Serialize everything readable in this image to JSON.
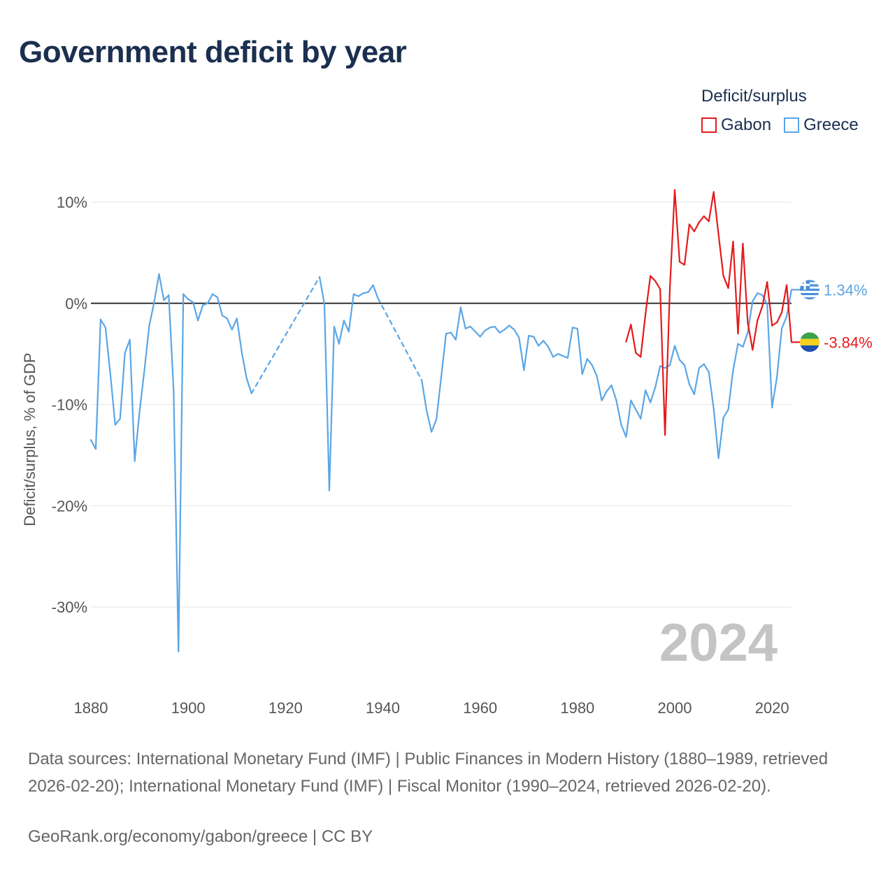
{
  "title": "Government deficit by year",
  "legend": {
    "title": "Deficit/surplus",
    "items": [
      {
        "name": "Gabon",
        "color": "#e41a1c"
      },
      {
        "name": "Greece",
        "color": "#5aa6e6"
      }
    ]
  },
  "source": "Data sources: International Monetary Fund (IMF) | Public Finances in Modern History (1880–1989, retrieved 2026-02-20); International Monetary Fund (IMF) | Fiscal Monitor (1990–2024, retrieved 2026-02-20).",
  "credit": "GeoRank.org/economy/gabon/greece | CC BY",
  "chart_data": {
    "type": "line",
    "title": "Government deficit by year",
    "xlabel": "",
    "ylabel": "Deficit/surplus, % of GDP",
    "xlim": [
      1880,
      2024
    ],
    "ylim": [
      -35.5,
      11.5
    ],
    "x_ticks": [
      {
        "value": 1880,
        "label": "1880"
      },
      {
        "value": 1900,
        "label": "1900"
      },
      {
        "value": 1920,
        "label": "1920"
      },
      {
        "value": 1940,
        "label": "1940"
      },
      {
        "value": 1960,
        "label": "1960"
      },
      {
        "value": 1980,
        "label": "1980"
      },
      {
        "value": 2000,
        "label": "2000"
      },
      {
        "value": 2020,
        "label": "2020"
      }
    ],
    "y_ticks": [
      {
        "value": 10,
        "label": "10%"
      },
      {
        "value": 0,
        "label": "0%"
      },
      {
        "value": -10,
        "label": "-10%"
      },
      {
        "value": -20,
        "label": "-20%"
      },
      {
        "value": -30,
        "label": "-30%"
      }
    ],
    "current_year": "2024",
    "series": [
      {
        "name": "Gabon",
        "color": "#e41a1c",
        "end_label": "-3.84%",
        "end_value": -3.84,
        "flag": "gabon-flag",
        "points": [
          [
            1990,
            -3.8
          ],
          [
            1991,
            -2.1
          ],
          [
            1992,
            -4.9
          ],
          [
            1993,
            -5.3
          ],
          [
            1994,
            -1.0
          ],
          [
            1995,
            2.7
          ],
          [
            1996,
            2.2
          ],
          [
            1997,
            1.4
          ],
          [
            1998,
            -13.0
          ],
          [
            1999,
            1.5
          ],
          [
            2000,
            11.2
          ],
          [
            2001,
            4.1
          ],
          [
            2002,
            3.8
          ],
          [
            2003,
            7.8
          ],
          [
            2004,
            7.1
          ],
          [
            2005,
            8.0
          ],
          [
            2006,
            8.6
          ],
          [
            2007,
            8.1
          ],
          [
            2008,
            11.0
          ],
          [
            2009,
            6.8
          ],
          [
            2010,
            2.7
          ],
          [
            2011,
            1.5
          ],
          [
            2012,
            6.1
          ],
          [
            2013,
            -3.0
          ],
          [
            2014,
            5.9
          ],
          [
            2015,
            -1.9
          ],
          [
            2016,
            -4.6
          ],
          [
            2017,
            -1.7
          ],
          [
            2018,
            -0.3
          ],
          [
            2019,
            2.1
          ],
          [
            2020,
            -2.2
          ],
          [
            2021,
            -1.9
          ],
          [
            2022,
            -0.9
          ],
          [
            2023,
            1.8
          ],
          [
            2024,
            -3.84
          ]
        ]
      },
      {
        "name": "Greece",
        "color": "#5aa6e6",
        "end_label": "1.34%",
        "end_value": 1.34,
        "flag": "greece-flag",
        "points": [
          [
            1880,
            -13.5
          ],
          [
            1881,
            -14.4
          ],
          [
            1882,
            -1.6
          ],
          [
            1883,
            -2.4
          ],
          [
            1884,
            -7.0
          ],
          [
            1885,
            -12.0
          ],
          [
            1886,
            -11.4
          ],
          [
            1887,
            -4.9
          ],
          [
            1888,
            -3.6
          ],
          [
            1889,
            -15.6
          ],
          [
            1890,
            -10.7
          ],
          [
            1891,
            -6.6
          ],
          [
            1892,
            -2.2
          ],
          [
            1893,
            0.1
          ],
          [
            1894,
            2.9
          ],
          [
            1895,
            0.3
          ],
          [
            1896,
            0.8
          ],
          [
            1897,
            -8.6
          ],
          [
            1898,
            -34.4
          ],
          [
            1899,
            0.9
          ],
          [
            1900,
            0.4
          ],
          [
            1901,
            0.1
          ],
          [
            1902,
            -1.7
          ],
          [
            1903,
            -0.2
          ],
          [
            1904,
            0.0
          ],
          [
            1905,
            0.9
          ],
          [
            1906,
            0.6
          ],
          [
            1907,
            -1.2
          ],
          [
            1908,
            -1.5
          ],
          [
            1909,
            -2.6
          ],
          [
            1910,
            -1.5
          ],
          [
            1911,
            -4.8
          ],
          [
            1912,
            -7.4
          ],
          [
            1913,
            -8.9
          ],
          [
            1927,
            2.6
          ],
          [
            1928,
            -0.1
          ],
          [
            1929,
            -18.5
          ],
          [
            1930,
            -2.3
          ],
          [
            1931,
            -4.0
          ],
          [
            1932,
            -1.7
          ],
          [
            1933,
            -2.8
          ],
          [
            1934,
            0.9
          ],
          [
            1935,
            0.7
          ],
          [
            1936,
            1.0
          ],
          [
            1937,
            1.1
          ],
          [
            1938,
            1.8
          ],
          [
            1939,
            0.5
          ],
          [
            1948,
            -7.6
          ],
          [
            1949,
            -10.6
          ],
          [
            1950,
            -12.7
          ],
          [
            1951,
            -11.5
          ],
          [
            1952,
            -7.3
          ],
          [
            1953,
            -3.0
          ],
          [
            1954,
            -2.9
          ],
          [
            1955,
            -3.6
          ],
          [
            1956,
            -0.4
          ],
          [
            1957,
            -2.5
          ],
          [
            1958,
            -2.3
          ],
          [
            1959,
            -2.8
          ],
          [
            1960,
            -3.3
          ],
          [
            1961,
            -2.7
          ],
          [
            1962,
            -2.4
          ],
          [
            1963,
            -2.3
          ],
          [
            1964,
            -2.9
          ],
          [
            1965,
            -2.6
          ],
          [
            1966,
            -2.2
          ],
          [
            1967,
            -2.6
          ],
          [
            1968,
            -3.4
          ],
          [
            1969,
            -6.6
          ],
          [
            1970,
            -3.2
          ],
          [
            1971,
            -3.3
          ],
          [
            1972,
            -4.2
          ],
          [
            1973,
            -3.7
          ],
          [
            1974,
            -4.3
          ],
          [
            1975,
            -5.3
          ],
          [
            1976,
            -5.0
          ],
          [
            1977,
            -5.2
          ],
          [
            1978,
            -5.4
          ],
          [
            1979,
            -2.4
          ],
          [
            1980,
            -2.5
          ],
          [
            1981,
            -7.0
          ],
          [
            1982,
            -5.5
          ],
          [
            1983,
            -6.1
          ],
          [
            1984,
            -7.2
          ],
          [
            1985,
            -9.6
          ],
          [
            1986,
            -8.7
          ],
          [
            1987,
            -8.1
          ],
          [
            1988,
            -9.6
          ],
          [
            1989,
            -12.0
          ],
          [
            1990,
            -13.2
          ],
          [
            1991,
            -9.6
          ],
          [
            1992,
            -10.5
          ],
          [
            1993,
            -11.4
          ],
          [
            1994,
            -8.6
          ],
          [
            1995,
            -9.8
          ],
          [
            1996,
            -8.3
          ],
          [
            1997,
            -6.2
          ],
          [
            1998,
            -6.4
          ],
          [
            1999,
            -6.1
          ],
          [
            2000,
            -4.2
          ],
          [
            2001,
            -5.6
          ],
          [
            2002,
            -6.1
          ],
          [
            2003,
            -8.0
          ],
          [
            2004,
            -9.0
          ],
          [
            2005,
            -6.4
          ],
          [
            2006,
            -6.0
          ],
          [
            2007,
            -6.8
          ],
          [
            2008,
            -10.4
          ],
          [
            2009,
            -15.3
          ],
          [
            2010,
            -11.3
          ],
          [
            2011,
            -10.5
          ],
          [
            2012,
            -6.6
          ],
          [
            2013,
            -4.0
          ],
          [
            2014,
            -4.3
          ],
          [
            2015,
            -2.9
          ],
          [
            2016,
            0.2
          ],
          [
            2017,
            1.0
          ],
          [
            2018,
            0.8
          ],
          [
            2019,
            -0.1
          ],
          [
            2020,
            -10.3
          ],
          [
            2021,
            -7.3
          ],
          [
            2022,
            -2.5
          ],
          [
            2023,
            -1.3
          ],
          [
            2024,
            1.34
          ]
        ]
      }
    ]
  }
}
